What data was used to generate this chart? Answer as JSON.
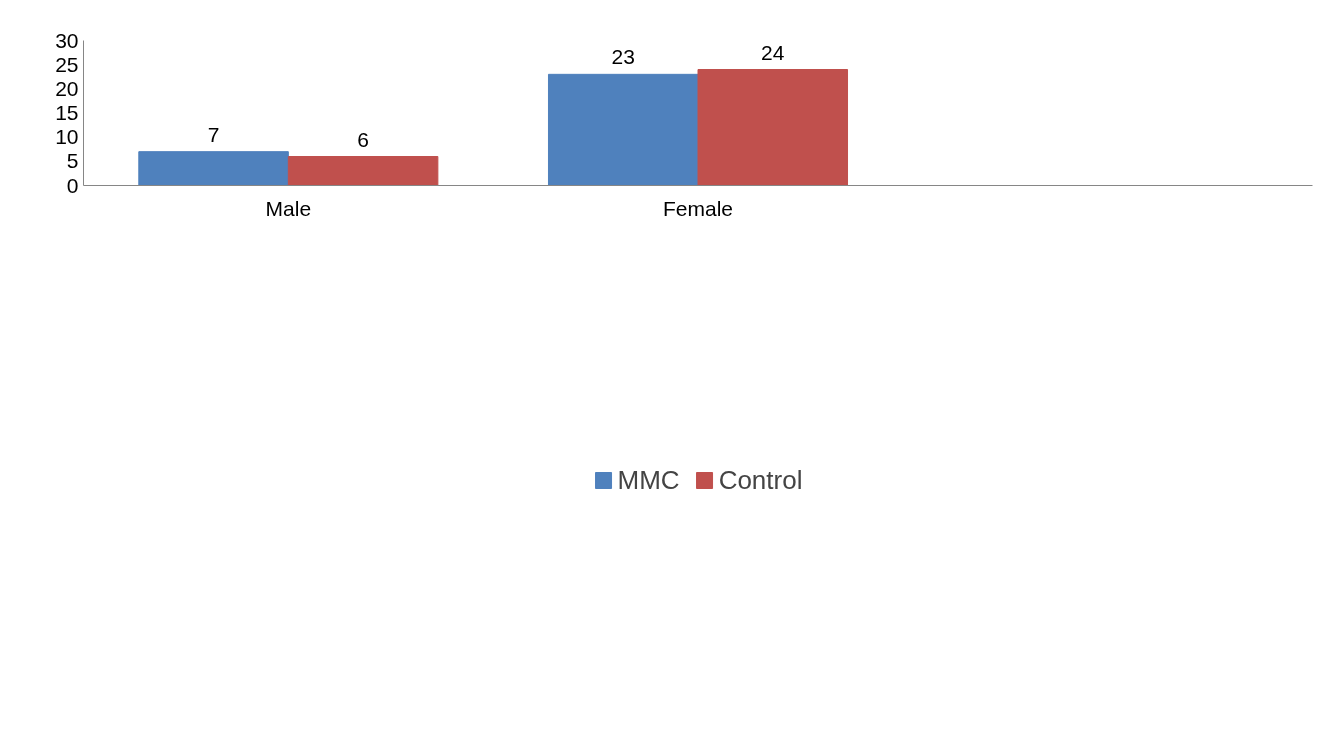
{
  "chart_data": {
    "type": "bar",
    "categories": [
      "Male",
      "Female",
      null
    ],
    "series": [
      {
        "name": "MMC",
        "color": "#4f81bd",
        "values": [
          7,
          23,
          null
        ]
      },
      {
        "name": "Control",
        "color": "#c0504d",
        "values": [
          6,
          24,
          null
        ]
      }
    ],
    "ylim": [
      0,
      30
    ],
    "yticks": [
      0,
      5,
      10,
      15,
      20,
      25,
      30
    ],
    "grid": false,
    "legend": "bottom",
    "data_labels": true
  }
}
